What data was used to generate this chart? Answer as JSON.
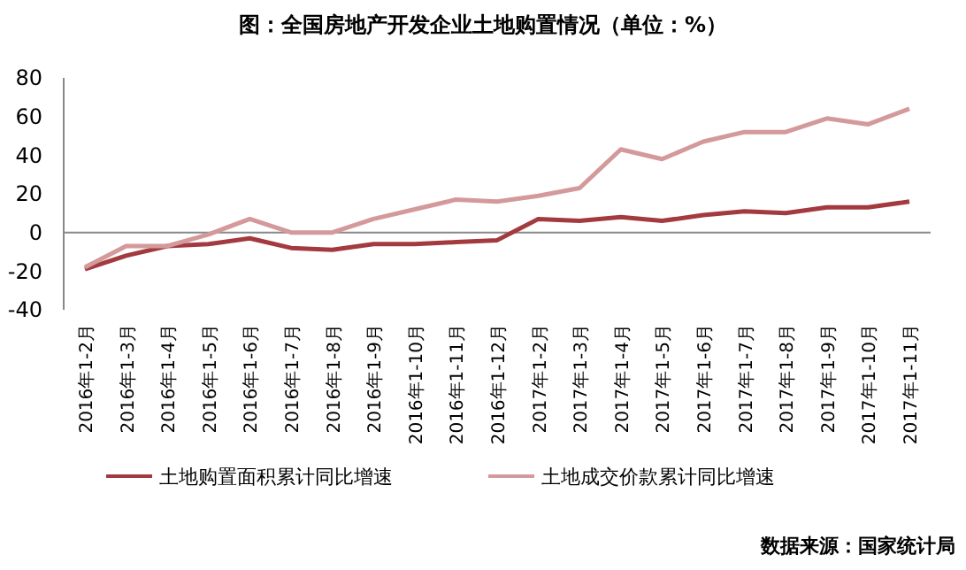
{
  "chart_data": {
    "type": "line",
    "title": "图：全国房地产开发企业土地购置情况（单位：%）",
    "annotations": [
      "数据来源：国家统计局"
    ],
    "categories": [
      "2016年1-2月",
      "2016年1-3月",
      "2016年1-4月",
      "2016年1-5月",
      "2016年1-6月",
      "2016年1-7月",
      "2016年1-8月",
      "2016年1-9月",
      "2016年1-10月",
      "2016年1-11月",
      "2016年1-12月",
      "2017年1-2月",
      "2017年1-3月",
      "2017年1-4月",
      "2017年1-5月",
      "2017年1-6月",
      "2017年1-7月",
      "2017年1-8月",
      "2017年1-9月",
      "2017年1-10月",
      "2017年1-11月"
    ],
    "series": [
      {
        "name": "土地购置面积累计同比增速",
        "color": "#a33a3f",
        "values": [
          -19,
          -12,
          -7,
          -6,
          -3,
          -8,
          -9,
          -6,
          -6,
          -5,
          -4,
          7,
          6,
          8,
          6,
          9,
          11,
          10,
          13,
          13,
          16
        ]
      },
      {
        "name": "土地成交价款累计同比增速",
        "color": "#d4999a",
        "values": [
          -18,
          -7,
          -7,
          -1,
          7,
          0,
          0,
          7,
          12,
          17,
          16,
          19,
          23,
          43,
          38,
          47,
          52,
          52,
          59,
          56,
          64
        ]
      }
    ],
    "ylim": [
      -40,
      80
    ],
    "yticks": [
      -40,
      -20,
      0,
      20,
      40,
      60,
      80
    ],
    "legend": "bottom",
    "line_style": "solid",
    "marker": "none"
  }
}
